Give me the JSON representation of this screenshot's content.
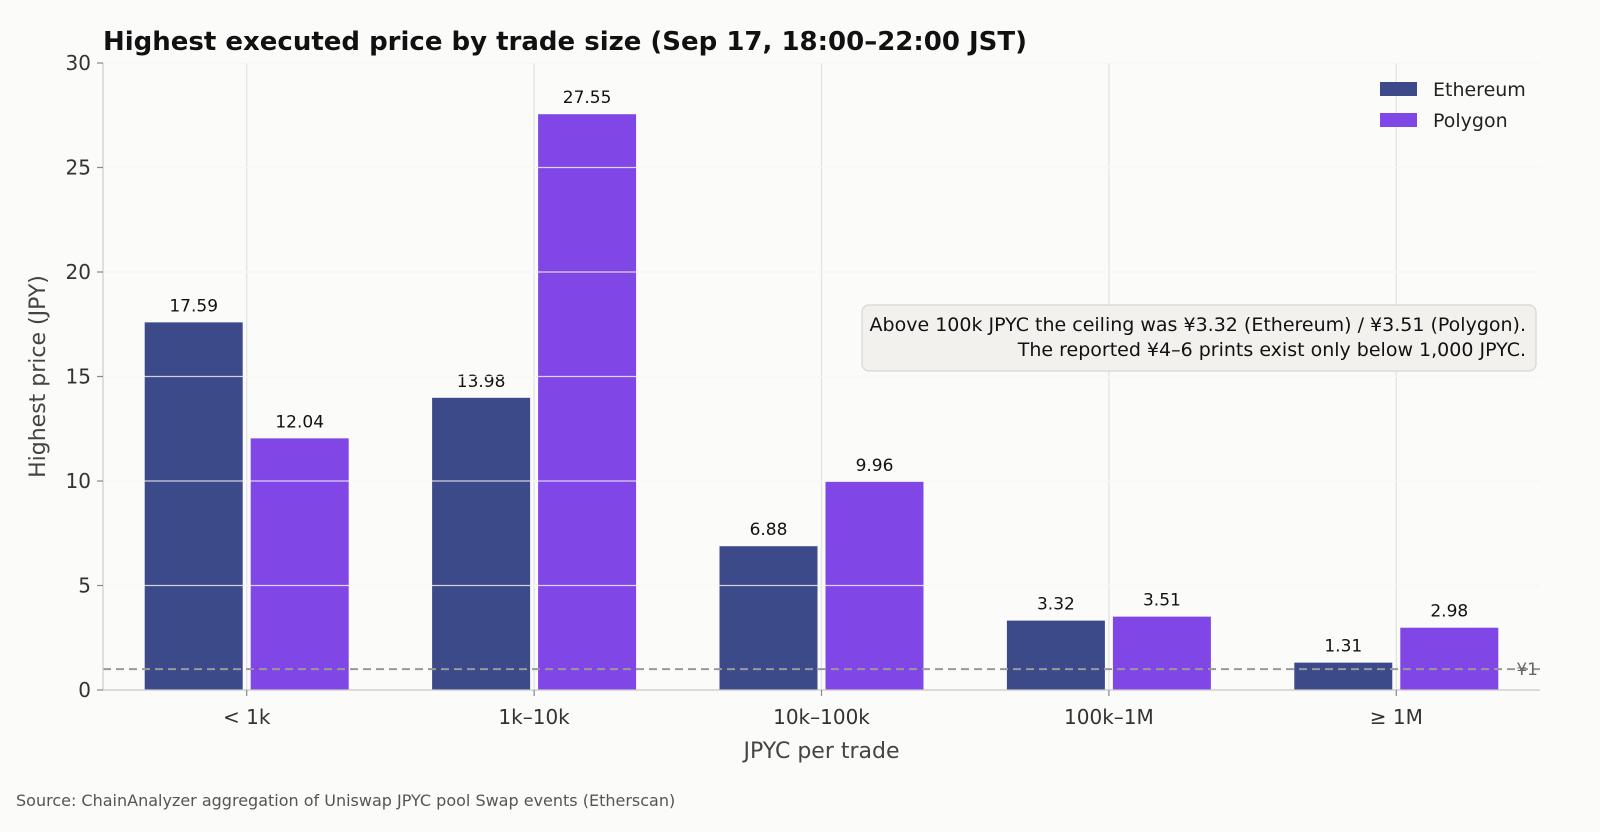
{
  "chart_data": {
    "type": "bar",
    "title": "Highest executed price by trade size (Sep 17, 18:00–22:00 JST)",
    "xlabel": "JPYC per trade",
    "ylabel": "Highest price (JPY)",
    "ylim": [
      0,
      30
    ],
    "yticks": [
      0,
      5,
      10,
      15,
      20,
      25,
      30
    ],
    "categories": [
      "< 1k",
      "1k–10k",
      "10k–100k",
      "100k–1M",
      "≥ 1M"
    ],
    "series": [
      {
        "name": "Ethereum",
        "color": "#3d4a8a",
        "values": [
          17.59,
          13.98,
          6.88,
          3.32,
          1.31
        ],
        "labels": [
          "17.59",
          "13.98",
          "6.88",
          "3.32",
          "1.31"
        ]
      },
      {
        "name": "Polygon",
        "color": "#8047e6",
        "values": [
          12.04,
          27.55,
          9.96,
          3.51,
          2.98
        ],
        "labels": [
          "12.04",
          "27.55",
          "9.96",
          "3.51",
          "2.98"
        ]
      }
    ],
    "legend_position": "top-right",
    "grid": true,
    "reference_line": {
      "value": 1,
      "label": "¥1",
      "color": "#999999"
    },
    "annotation": [
      "Above 100k JPYC the ceiling was ¥3.32 (Ethereum) / ¥3.51 (Polygon).",
      "The reported ¥4–6 prints exist only below 1,000 JPYC."
    ]
  },
  "source": "Source: ChainAnalyzer aggregation of Uniswap JPYC pool Swap events (Etherscan)"
}
